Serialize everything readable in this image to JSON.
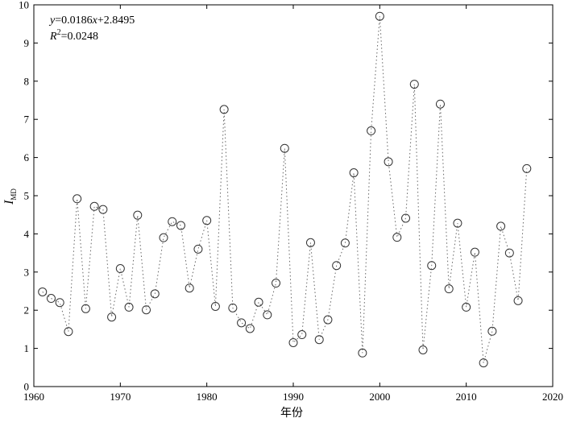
{
  "chart_data": {
    "type": "scatter",
    "xlabel": "年份",
    "ylabel": {
      "main": "I",
      "sub": "MD"
    },
    "xlim": [
      1960,
      2020
    ],
    "ylim": [
      0,
      10
    ],
    "xticks": [
      "1960",
      "1970",
      "1980",
      "1990",
      "2000",
      "2010",
      "2020"
    ],
    "yticks": [
      "0",
      "1",
      "2",
      "3",
      "4",
      "5",
      "6",
      "7",
      "8",
      "9",
      "10"
    ],
    "annotations": {
      "equation": {
        "y": "y",
        "eq": "=0.0186",
        "x": "x",
        "rest": "+2.8495"
      },
      "r2": {
        "r": "R",
        "sup": "2",
        "rest": "=0.0248"
      }
    },
    "trend": {
      "slope": 0.0186,
      "intercept": 2.8495,
      "x_start": 1961,
      "x_end": 2017
    },
    "series": [
      {
        "x": [
          1961,
          1962,
          1963,
          1964,
          1965,
          1966,
          1967,
          1968,
          1969,
          1970,
          1971,
          1972,
          1973,
          1974,
          1975,
          1976,
          1977,
          1978,
          1979,
          1980,
          1981,
          1982,
          1983,
          1984,
          1985,
          1986,
          1987,
          1988,
          1989,
          1990,
          1991,
          1992,
          1993,
          1994,
          1995,
          1996,
          1997,
          1998,
          1999,
          2000,
          2001,
          2002,
          2003,
          2004,
          2005,
          2006,
          2007,
          2008,
          2009,
          2010,
          2011,
          2012,
          2013,
          2014,
          2015,
          2016,
          2017
        ],
        "values": [
          2.48,
          2.31,
          2.2,
          1.44,
          4.92,
          2.04,
          4.72,
          4.64,
          1.82,
          3.09,
          2.08,
          4.49,
          2.01,
          2.43,
          3.9,
          4.32,
          4.22,
          2.58,
          3.6,
          4.35,
          2.1,
          7.26,
          2.06,
          1.67,
          1.52,
          2.21,
          1.88,
          2.71,
          6.24,
          1.15,
          1.36,
          3.77,
          1.23,
          1.75,
          3.17,
          3.76,
          5.6,
          0.88,
          6.7,
          9.7,
          5.89,
          3.91,
          4.41,
          7.92,
          0.96,
          3.17,
          7.4,
          2.56,
          4.28,
          2.08,
          3.52,
          0.62,
          1.45,
          4.2,
          3.5,
          2.25,
          5.71
        ]
      }
    ]
  }
}
